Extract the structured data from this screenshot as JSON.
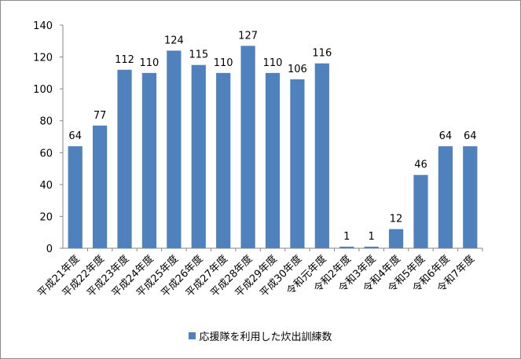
{
  "chart_data": {
    "type": "bar",
    "title": "",
    "xlabel": "",
    "ylabel": "",
    "ylim": [
      0,
      140
    ],
    "yticks": [
      0,
      20,
      40,
      60,
      80,
      100,
      120,
      140
    ],
    "grid": false,
    "legend_position": "bottom",
    "categories": [
      "平成21年度",
      "平成22年度",
      "平成23年度",
      "平成24年度",
      "平成25年度",
      "平成26年度",
      "平成27年度",
      "平成28年度",
      "平成29年度",
      "平成30年度",
      "令和元年度",
      "令和2年度",
      "令和3年度",
      "令和4年度",
      "令和5年度",
      "令和6年度",
      "令和7年度"
    ],
    "series": [
      {
        "name": "応援隊を利用した炊出訓練数",
        "color": "#4f81bd",
        "values": [
          64,
          77,
          112,
          110,
          124,
          115,
          110,
          127,
          110,
          106,
          116,
          1,
          1,
          12,
          46,
          64,
          64
        ]
      }
    ]
  }
}
